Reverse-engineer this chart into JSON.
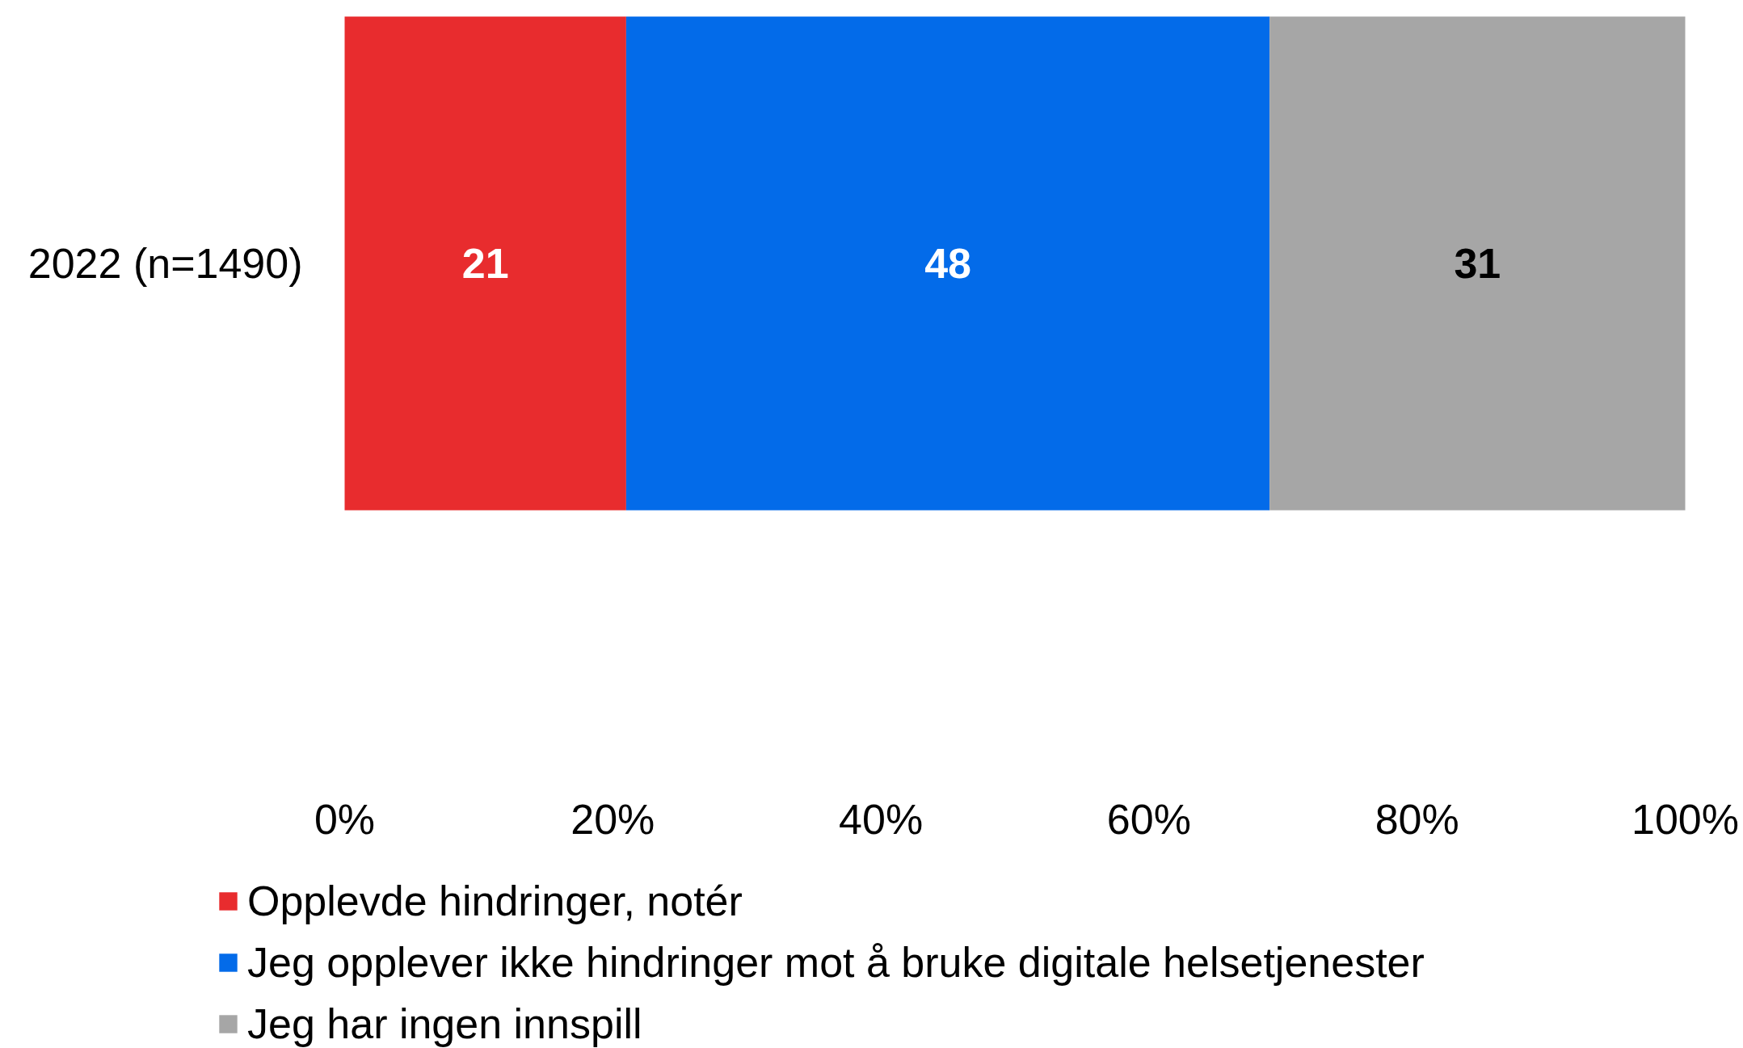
{
  "chart_data": {
    "type": "bar",
    "orientation": "horizontal",
    "stacked": true,
    "categories": [
      "2022 (n=1490)"
    ],
    "series": [
      {
        "name": "Opplevde hindringer, notér",
        "color": "#e82c2e",
        "values": [
          21
        ]
      },
      {
        "name": "Jeg opplever ikke hindringer mot å bruke digitale helsetjenester",
        "color": "#036be9",
        "values": [
          48
        ]
      },
      {
        "name": "Jeg har ingen innspill",
        "color": "#a6a6a6",
        "values": [
          31
        ]
      }
    ],
    "xlim": [
      0,
      100
    ],
    "xticks": [
      {
        "value": 0,
        "label": "0%"
      },
      {
        "value": 20,
        "label": "20%"
      },
      {
        "value": 40,
        "label": "40%"
      },
      {
        "value": 60,
        "label": "60%"
      },
      {
        "value": 80,
        "label": "80%"
      },
      {
        "value": 100,
        "label": "100%"
      }
    ],
    "data_labels": true,
    "legend": "bottom"
  }
}
